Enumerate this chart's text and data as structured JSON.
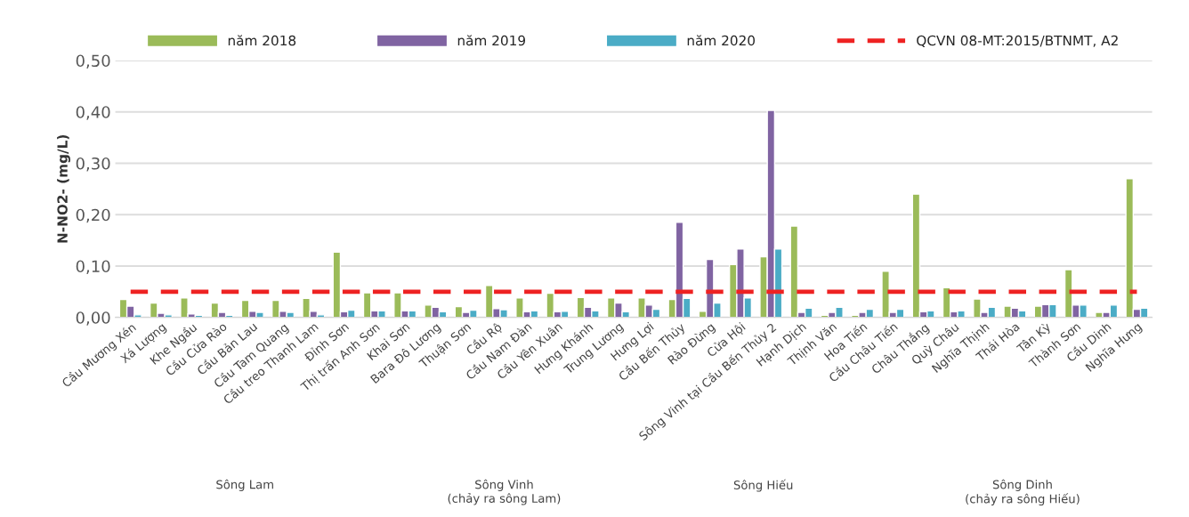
{
  "chart_data": {
    "type": "bar",
    "ylabel": "N-NO2- (mg/L)",
    "categories": [
      "Cầu Mương Xén",
      "Xá Lượng",
      "Khe Ngầu",
      "Cầu Cửa Rào",
      "Cầu Bản Lau",
      "Cầu Tam Quang",
      "Cầu treo Thanh Lam",
      "Đỉnh Sơn",
      "Thị trấn Anh Sơn",
      "Khai Sơn",
      "Bara Đô Lương",
      "Thuận Sơn",
      "Cầu Rộ",
      "Cầu Nam Đàn",
      "Cầu Yên Xuân",
      "Hưng Khánh",
      "Trung Lương",
      "Hưng Lợi",
      "Cầu Bến Thủy",
      "Rào Đừng",
      "Cửa Hội",
      "Sông Vinh tại Cầu Bến Thủy 2",
      "Hạnh Dịch",
      "Thịnh Văn",
      "Hoa Tiến",
      "Cầu Châu Tiến",
      "Châu Thắng",
      "Quỳ Châu",
      "Nghĩa Thịnh",
      "Thái Hòa",
      "Tân Kỳ",
      "Thành Sơn",
      "Cầu Dinh",
      "Nghĩa Hưng"
    ],
    "series": [
      {
        "name": "năm 2018",
        "color": "#9bbb59",
        "values": [
          0.035,
          0.028,
          0.038,
          0.028,
          0.033,
          0.033,
          0.037,
          0.127,
          0.048,
          0.048,
          0.024,
          0.021,
          0.062,
          0.038,
          0.047,
          0.039,
          0.038,
          0.038,
          0.035,
          0.012,
          0.103,
          0.118,
          0.178,
          0.004,
          0.004,
          0.09,
          0.24,
          0.058,
          0.036,
          0.022,
          0.022,
          0.093,
          0.01,
          0.27
        ]
      },
      {
        "name": "năm 2019",
        "color": "#8064a2",
        "values": [
          0.022,
          0.008,
          0.007,
          0.01,
          0.012,
          0.012,
          0.012,
          0.011,
          0.013,
          0.013,
          0.02,
          0.01,
          0.017,
          0.011,
          0.011,
          0.02,
          0.028,
          0.024,
          0.185,
          0.113,
          0.133,
          0.403,
          0.01,
          0.01,
          0.01,
          0.01,
          0.011,
          0.011,
          0.01,
          0.018,
          0.025,
          0.024,
          0.01,
          0.016
        ]
      },
      {
        "name": "năm 2020",
        "color": "#4bacc6",
        "values": [
          0.005,
          0.005,
          0.004,
          0.004,
          0.01,
          0.01,
          0.005,
          0.014,
          0.013,
          0.013,
          0.011,
          0.014,
          0.015,
          0.013,
          0.012,
          0.013,
          0.011,
          0.016,
          0.037,
          0.028,
          0.038,
          0.133,
          0.018,
          0.02,
          0.016,
          0.016,
          0.013,
          0.013,
          0.02,
          0.013,
          0.025,
          0.024,
          0.024,
          0.018
        ]
      },
      {
        "name": "QCVN 08-MT:2015/BTNMT, A2",
        "type": "line",
        "line_style": "dashed",
        "color": "#ee2222",
        "values": [
          0.05,
          0.05,
          0.05,
          0.05,
          0.05,
          0.05,
          0.05,
          0.05,
          0.05,
          0.05,
          0.05,
          0.05,
          0.05,
          0.05,
          0.05,
          0.05,
          0.05,
          0.05,
          0.05,
          0.05,
          0.05,
          0.05,
          0.05,
          0.05,
          0.05,
          0.05,
          0.05,
          0.05,
          0.05,
          0.05,
          0.05,
          0.05,
          0.05,
          0.05
        ]
      }
    ],
    "ylim": [
      0,
      0.5
    ],
    "yticks": [
      {
        "value": 0,
        "label": "0,00"
      },
      {
        "value": 0.1,
        "label": "0,10"
      },
      {
        "value": 0.2,
        "label": "0,20"
      },
      {
        "value": 0.3,
        "label": "0,30"
      },
      {
        "value": 0.4,
        "label": "0,40"
      },
      {
        "value": 0.5,
        "label": "0,50"
      }
    ],
    "grid": "y",
    "legend": "top",
    "annotations": [
      "Sông Lam",
      "Sông Vinh\n(chảy ra sông Lam)",
      "Sông Hiếu",
      "Sông Dinh\n(chảy ra sông Hiếu)"
    ]
  }
}
